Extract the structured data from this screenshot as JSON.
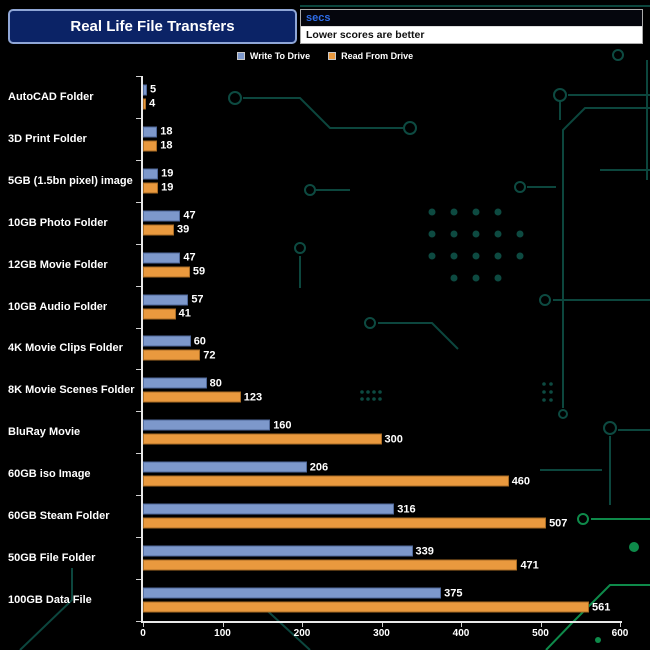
{
  "header": {
    "title": "Real Life File Transfers",
    "units_label": "secs",
    "subtitle": "Lower scores are better"
  },
  "legend": [
    {
      "key": "write-to-drive",
      "label": "Write To Drive",
      "color": "#7d98cb"
    },
    {
      "key": "read-from-drive",
      "label": "Read From Drive",
      "color": "#e9993e"
    }
  ],
  "theme": {
    "background": "#000000",
    "circuit_trace": "#0d4a41",
    "circuit_accent_green": "#0e8a4a",
    "axis_color": "#e9e9e9",
    "text_color": "#ffffff",
    "title_box_bg": "#0b2366",
    "units_text_color": "#2e6ce8"
  },
  "chart_data": {
    "type": "bar",
    "orientation": "horizontal",
    "title": "Real Life File Transfers",
    "xlabel": "secs",
    "note": "Lower scores are better",
    "categories": [
      "AutoCAD Folder",
      "3D Print Folder",
      "5GB (1.5bn pixel) image",
      "10GB Photo Folder",
      "12GB Movie Folder",
      "10GB Audio Folder",
      "4K Movie Clips Folder",
      "8K Movie Scenes Folder",
      "BluRay Movie",
      "60GB iso Image",
      "60GB Steam Folder",
      "50GB File Folder",
      "100GB Data File"
    ],
    "series": [
      {
        "key": "write-to-drive",
        "name": "Write To Drive",
        "color": "#7d98cb",
        "border_color": "#50699a",
        "values": [
          5,
          18,
          19,
          47,
          47,
          57,
          60,
          80,
          160,
          206,
          316,
          339,
          375
        ]
      },
      {
        "key": "read-from-drive",
        "name": "Read From Drive",
        "color": "#e9993e",
        "border_color": "#a96c25",
        "values": [
          4,
          18,
          19,
          39,
          59,
          41,
          72,
          123,
          300,
          460,
          507,
          471,
          561
        ]
      }
    ],
    "xlim": [
      0,
      600
    ],
    "x_ticks": [
      0,
      100,
      200,
      300,
      400,
      500,
      600
    ],
    "value_labels": true,
    "legend_position": "top",
    "grid": false
  }
}
